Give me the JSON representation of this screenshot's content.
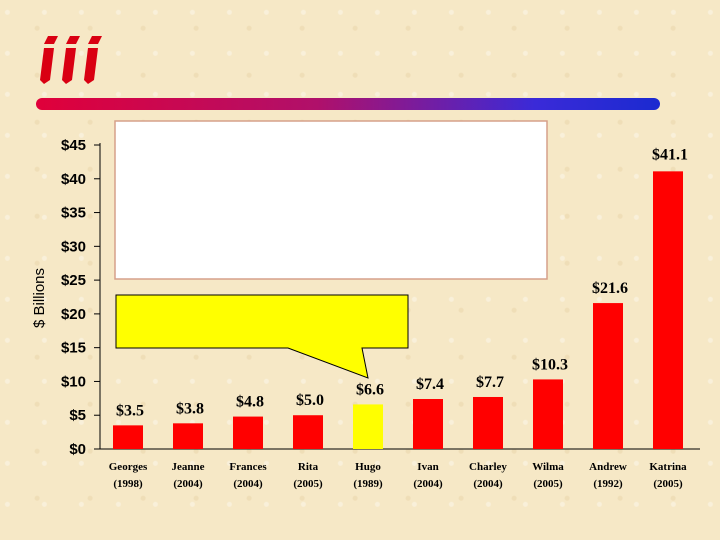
{
  "colors": {
    "bar": "#ff0000",
    "bar_highlight": "#ffff00",
    "logo": "#d90012",
    "callout_fill": "#ffff00",
    "textbox_fill": "#ffffff",
    "textbox_border": "#d6a08a"
  },
  "logo": {
    "text": "iii"
  },
  "chart_data": {
    "type": "bar",
    "ylabel": "$ Billions",
    "ylim": [
      0,
      45
    ],
    "yticks": [
      0,
      5,
      10,
      15,
      20,
      25,
      30,
      35,
      40,
      45
    ],
    "ytick_labels": [
      "$0",
      "$5",
      "$10",
      "$15",
      "$20",
      "$25",
      "$30",
      "$35",
      "$40",
      "$45"
    ],
    "categories": [
      "Georges",
      "Jeanne",
      "Frances",
      "Rita",
      "Hugo",
      "Ivan",
      "Charley",
      "Wilma",
      "Andrew",
      "Katrina"
    ],
    "years": [
      "(1998)",
      "(2004)",
      "(2004)",
      "(2005)",
      "(1989)",
      "(2004)",
      "(2004)",
      "(2005)",
      "(1992)",
      "(2005)"
    ],
    "values": [
      3.5,
      3.8,
      4.8,
      5.0,
      6.6,
      7.4,
      7.7,
      10.3,
      21.6,
      41.1
    ],
    "value_labels": [
      "$3.5",
      "$3.8",
      "$4.8",
      "$5.0",
      "$6.6",
      "$7.4",
      "$7.7",
      "$10.3",
      "$21.6",
      "$41.1"
    ],
    "highlight_index": 4,
    "grid": false
  }
}
